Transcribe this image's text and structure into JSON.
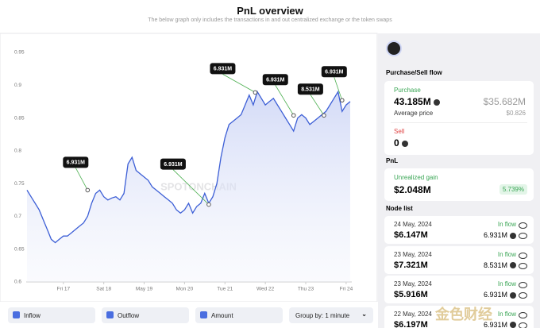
{
  "header": {
    "title": "PnL overview",
    "subtitle": "The below graph only includes the transactions in and out centralized exchange or the token swaps"
  },
  "chart_data": {
    "type": "line",
    "color": "#3d5fd6",
    "x": [
      16.1,
      16.2,
      16.3,
      16.4,
      16.5,
      16.6,
      16.7,
      16.8,
      16.9,
      17.0,
      17.1,
      17.2,
      17.3,
      17.4,
      17.5,
      17.6,
      17.7,
      17.8,
      17.9,
      18.0,
      18.1,
      18.2,
      18.3,
      18.4,
      18.5,
      18.6,
      18.7,
      18.8,
      18.9,
      19.0,
      19.1,
      19.2,
      19.3,
      19.4,
      19.5,
      19.6,
      19.7,
      19.8,
      19.9,
      20.0,
      20.1,
      20.2,
      20.3,
      20.4,
      20.5,
      20.6,
      20.7,
      20.8,
      20.9,
      21.0,
      21.1,
      21.2,
      21.3,
      21.4,
      21.5,
      21.6,
      21.7,
      21.8,
      21.9,
      22.0,
      22.1,
      22.2,
      22.3,
      22.4,
      22.5,
      22.6,
      22.7,
      22.8,
      22.9,
      23.0,
      23.1,
      23.2,
      23.3,
      23.4,
      23.5,
      23.6,
      23.7,
      23.8,
      23.9,
      24.0,
      24.1
    ],
    "values": [
      0.74,
      0.73,
      0.72,
      0.71,
      0.695,
      0.68,
      0.665,
      0.66,
      0.665,
      0.67,
      0.67,
      0.675,
      0.68,
      0.685,
      0.69,
      0.7,
      0.72,
      0.735,
      0.74,
      0.73,
      0.725,
      0.728,
      0.73,
      0.725,
      0.735,
      0.78,
      0.79,
      0.77,
      0.765,
      0.76,
      0.755,
      0.745,
      0.74,
      0.735,
      0.73,
      0.725,
      0.72,
      0.71,
      0.705,
      0.71,
      0.72,
      0.705,
      0.715,
      0.72,
      0.735,
      0.72,
      0.73,
      0.75,
      0.79,
      0.82,
      0.84,
      0.845,
      0.85,
      0.855,
      0.87,
      0.885,
      0.87,
      0.89,
      0.88,
      0.87,
      0.875,
      0.88,
      0.87,
      0.86,
      0.85,
      0.84,
      0.83,
      0.85,
      0.855,
      0.85,
      0.84,
      0.845,
      0.85,
      0.855,
      0.86,
      0.87,
      0.88,
      0.89,
      0.86,
      0.87,
      0.875
    ],
    "xlim": [
      16.08,
      24.14
    ],
    "xticks": [
      {
        "value": 17,
        "label": "Fri 17"
      },
      {
        "value": 18,
        "label": "Sat 18"
      },
      {
        "value": 19,
        "label": "May 19"
      },
      {
        "value": 20,
        "label": "Mon 20"
      },
      {
        "value": 21,
        "label": "Tue 21"
      },
      {
        "value": 22,
        "label": "Wed 22"
      },
      {
        "value": 23,
        "label": "Thu 23"
      },
      {
        "value": 24,
        "label": "Fri 24"
      }
    ],
    "ylim": [
      0.6,
      0.95
    ],
    "yticks": [
      0.6,
      0.65,
      0.7,
      0.75,
      0.8,
      0.85,
      0.9,
      0.95
    ],
    "grid": false,
    "annotations": [
      {
        "label": "6.931M",
        "x": 17.6,
        "y": 0.74
      },
      {
        "label": "6.931M",
        "x": 20.6,
        "y": 0.718
      },
      {
        "label": "6.931M",
        "x": 21.75,
        "y": 0.889
      },
      {
        "label": "6.931M",
        "x": 22.7,
        "y": 0.854
      },
      {
        "label": "8.531M",
        "x": 23.45,
        "y": 0.854
      },
      {
        "label": "6.931M",
        "x": 23.9,
        "y": 0.877
      }
    ]
  },
  "controls": {
    "inflow": "Inflow",
    "outflow": "Outflow",
    "amount": "Amount",
    "group_by": "Group by: 1 minute"
  },
  "sidebar": {
    "section1": "Purchase/Sell flow",
    "purchase_label": "Purchase",
    "purchase_amount": "43.185M",
    "purchase_usd": "$35.682M",
    "avg_price_label": "Average price",
    "avg_price": "$0.826",
    "sell_label": "Sell",
    "sell_amount": "0",
    "pnl_label": "PnL",
    "unrealized_label": "Unrealized gain",
    "unrealized_value": "$2.048M",
    "unrealized_pct": "5.739%",
    "node_list_label": "Node list",
    "nodes": [
      {
        "date": "24 May, 2024",
        "amount": "$6.147M",
        "flow": "In flow",
        "value": "6.931M"
      },
      {
        "date": "23 May, 2024",
        "amount": "$7.321M",
        "flow": "In flow",
        "value": "8.531M"
      },
      {
        "date": "23 May, 2024",
        "amount": "$5.916M",
        "flow": "In flow",
        "value": "6.931M"
      },
      {
        "date": "22 May, 2024",
        "amount": "$6.197M",
        "flow": "In flow",
        "value": "6.931M"
      }
    ]
  },
  "watermarks": [
    "SPOTONCHAIN",
    "金色财经"
  ]
}
